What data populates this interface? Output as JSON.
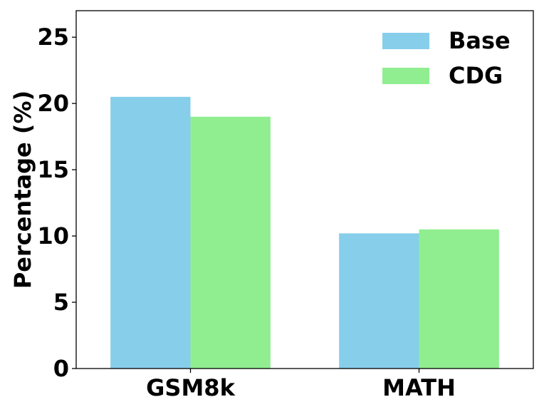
{
  "chart_data": {
    "type": "bar",
    "title": "",
    "xlabel": "",
    "ylabel": "Percentage (%)",
    "categories": [
      "GSM8k",
      "MATH"
    ],
    "series": [
      {
        "name": "Base",
        "values": [
          20.5,
          10.2
        ],
        "color": "#87CEEB"
      },
      {
        "name": "CDG",
        "values": [
          19.0,
          10.5
        ],
        "color": "#90EE90"
      }
    ],
    "ylim": [
      0,
      27
    ],
    "yticks": [
      0,
      5,
      10,
      15,
      20,
      25
    ],
    "grid": false,
    "legend_position": "top-right"
  }
}
